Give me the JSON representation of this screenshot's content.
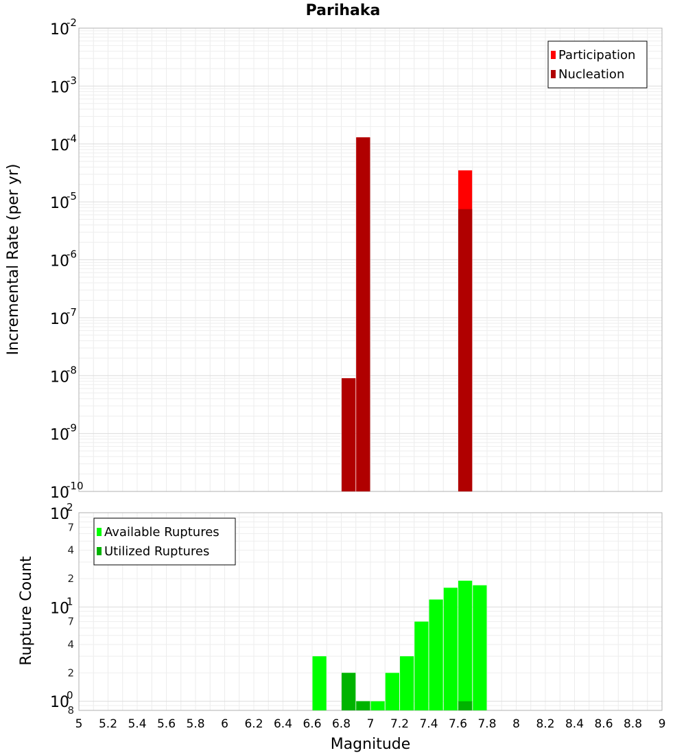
{
  "chart_data": [
    {
      "type": "bar",
      "title": "Parihaka",
      "xlabel": "",
      "ylabel": "Incremental Rate (per yr)",
      "yscale": "log",
      "ylim": [
        1e-10,
        0.01
      ],
      "xlim": [
        5,
        9
      ],
      "y_tick_exponents": [
        "-2",
        "-3",
        "-4",
        "-5",
        "-6",
        "-7",
        "-8",
        "-9",
        "-10"
      ],
      "y_tick_base": "10",
      "grid": true,
      "legend_position": "top-right",
      "series": [
        {
          "name": "Participation",
          "color": "#ff0000",
          "x": [
            6.85,
            6.95,
            7.65
          ],
          "values": [
            9e-09,
            0.00013,
            3.5e-05
          ]
        },
        {
          "name": "Nucleation",
          "color": "#b00000",
          "x": [
            6.85,
            6.95,
            7.65
          ],
          "values": [
            9e-09,
            0.00013,
            7.5e-06
          ]
        }
      ]
    },
    {
      "type": "bar",
      "title": "",
      "xlabel": "Magnitude",
      "ylabel": "Rupture Count",
      "yscale": "log",
      "ylim": [
        0.8,
        100
      ],
      "xlim": [
        5,
        9
      ],
      "x_tick_labels": [
        "5",
        "5.2",
        "5.4",
        "5.6",
        "5.8",
        "6",
        "6.2",
        "6.4",
        "6.6",
        "6.8",
        "7",
        "7.2",
        "7.4",
        "7.6",
        "7.8",
        "8",
        "8.2",
        "8.4",
        "8.6",
        "8.8",
        "9"
      ],
      "y_major_ticks": [
        {
          "base": "10",
          "exp": "2"
        },
        {
          "base": "10",
          "exp": "1"
        },
        {
          "base": "10",
          "exp": "0"
        }
      ],
      "y_minor_tick_labels": [
        "7",
        "4",
        "2",
        "7",
        "4",
        "2",
        "8"
      ],
      "grid": true,
      "legend_position": "top-left",
      "series": [
        {
          "name": "Available Ruptures",
          "color": "#00ff00",
          "x": [
            6.65,
            6.85,
            6.95,
            7.05,
            7.15,
            7.25,
            7.35,
            7.45,
            7.55,
            7.65,
            7.75
          ],
          "values": [
            3,
            2,
            1,
            1,
            2,
            3,
            7,
            12,
            16,
            19,
            17
          ]
        },
        {
          "name": "Utilized Ruptures",
          "color": "#00b300",
          "x": [
            6.85,
            6.95,
            7.65
          ],
          "values": [
            2,
            1,
            1
          ]
        }
      ]
    }
  ]
}
